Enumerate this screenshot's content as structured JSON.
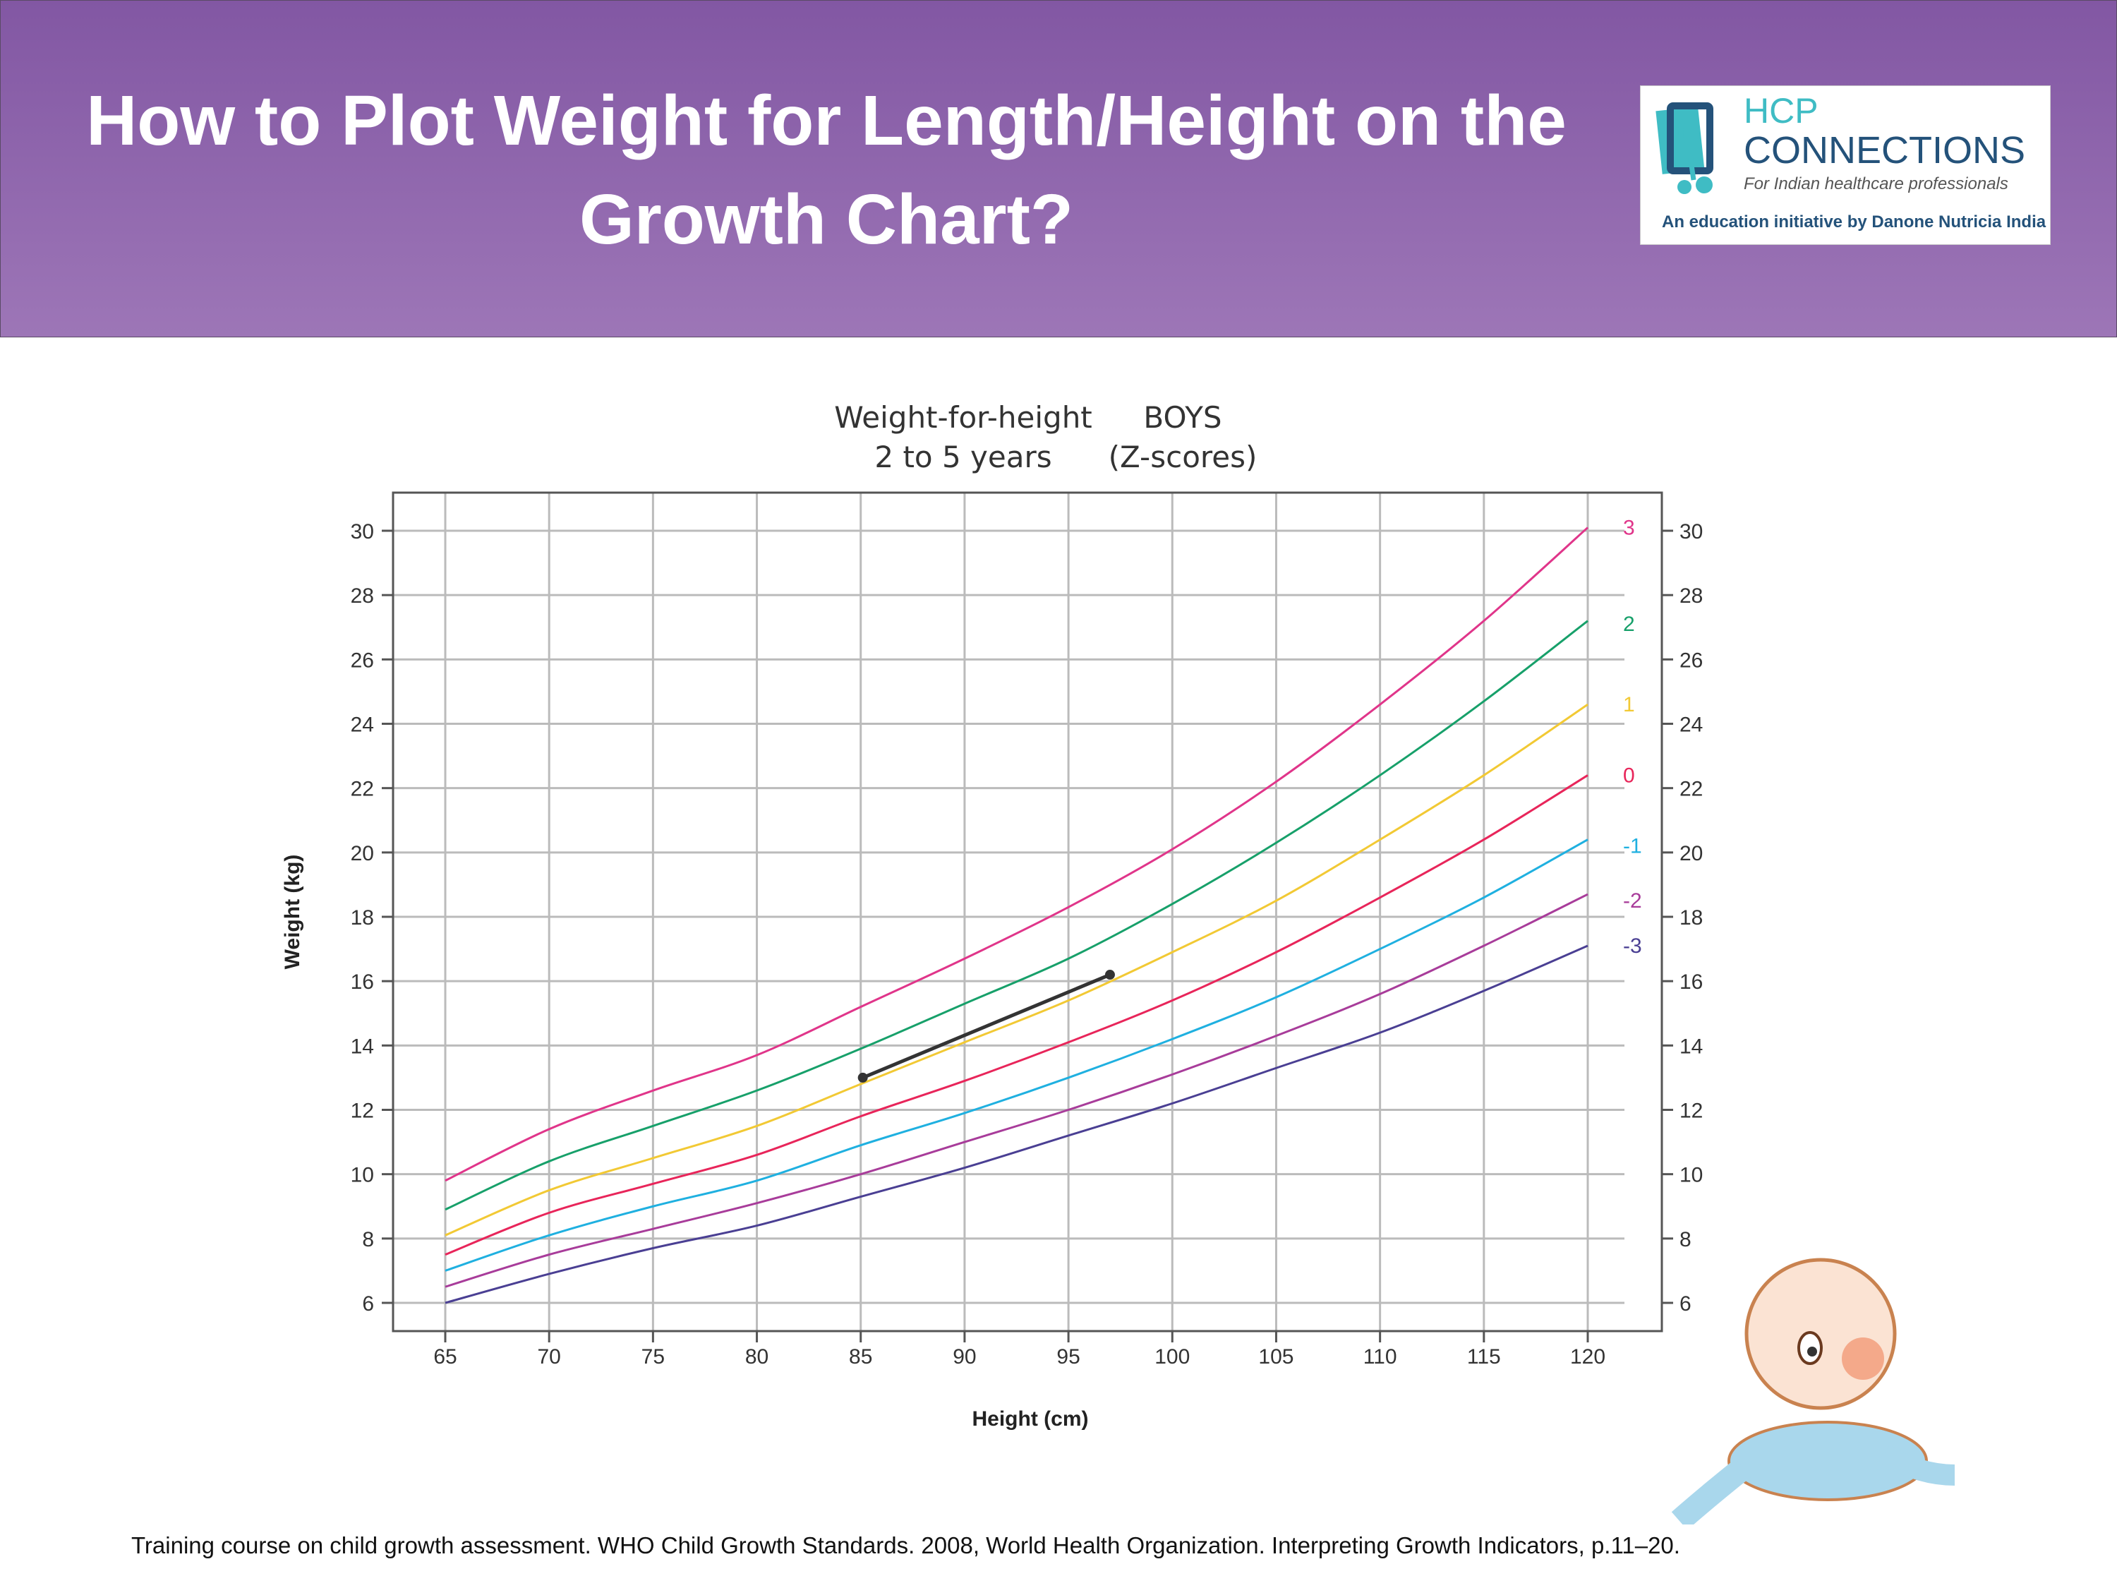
{
  "header": {
    "title": "How to Plot Weight for Length/Height on the Growth Chart?",
    "logo": {
      "line1": "HCP",
      "line2": "CONNECTIONS",
      "tagline": "For Indian healthcare professionals",
      "initiative": "An education initiative by Danone Nutricia India"
    }
  },
  "chart_data": {
    "type": "line",
    "title": "Weight-for-height",
    "subtitle": "2 to 5 years",
    "title_right": "BOYS",
    "subtitle_right": "(Z-scores)",
    "xlabel": "Height (cm)",
    "ylabel": "Weight (kg)",
    "xlim": [
      62.7,
      126.3
    ],
    "ylim": [
      5.2,
      31.1
    ],
    "xticks": [
      65,
      70,
      75,
      80,
      85,
      90,
      95,
      100,
      105,
      110,
      115,
      120
    ],
    "yticks": [
      6,
      8,
      10,
      12,
      14,
      16,
      18,
      20,
      22,
      24,
      26,
      28,
      30
    ],
    "grid": true,
    "x": [
      65,
      70,
      75,
      80,
      85,
      90,
      95,
      100,
      105,
      110,
      115,
      120
    ],
    "series": [
      {
        "name": "3",
        "color": "#e0358a",
        "values": [
          9.8,
          11.4,
          12.6,
          13.7,
          15.2,
          16.7,
          18.3,
          20.1,
          22.2,
          24.6,
          27.2,
          30.1
        ]
      },
      {
        "name": "2",
        "color": "#17a06a",
        "values": [
          8.9,
          10.4,
          11.5,
          12.6,
          13.9,
          15.3,
          16.7,
          18.4,
          20.3,
          22.4,
          24.7,
          27.2
        ]
      },
      {
        "name": "1",
        "color": "#f2c934",
        "values": [
          8.1,
          9.5,
          10.5,
          11.5,
          12.8,
          14.1,
          15.4,
          16.9,
          18.5,
          20.4,
          22.4,
          24.6
        ]
      },
      {
        "name": "0",
        "color": "#e8255a",
        "values": [
          7.5,
          8.8,
          9.7,
          10.6,
          11.8,
          12.9,
          14.1,
          15.4,
          16.9,
          18.6,
          20.4,
          22.4
        ]
      },
      {
        "name": "-1",
        "color": "#1fb0e0",
        "values": [
          7.0,
          8.1,
          9.0,
          9.8,
          10.9,
          11.9,
          13.0,
          14.2,
          15.5,
          17.0,
          18.6,
          20.4
        ]
      },
      {
        "name": "-2",
        "color": "#a83c9a",
        "values": [
          6.5,
          7.5,
          8.3,
          9.1,
          10.0,
          11.0,
          12.0,
          13.1,
          14.3,
          15.6,
          17.1,
          18.7
        ]
      },
      {
        "name": "-3",
        "color": "#4a3f93",
        "values": [
          6.0,
          6.9,
          7.7,
          8.4,
          9.3,
          10.2,
          11.2,
          12.2,
          13.3,
          14.4,
          15.7,
          17.1
        ]
      }
    ],
    "plotted_points": {
      "x": [
        85.1,
        97
      ],
      "y": [
        13.0,
        16.2
      ],
      "color": "#333333"
    }
  },
  "footer": {
    "citation": "Training course on child growth assessment. WHO Child Growth Standards. 2008, World Health Organization. Interpreting Growth Indicators, p.11–20."
  }
}
